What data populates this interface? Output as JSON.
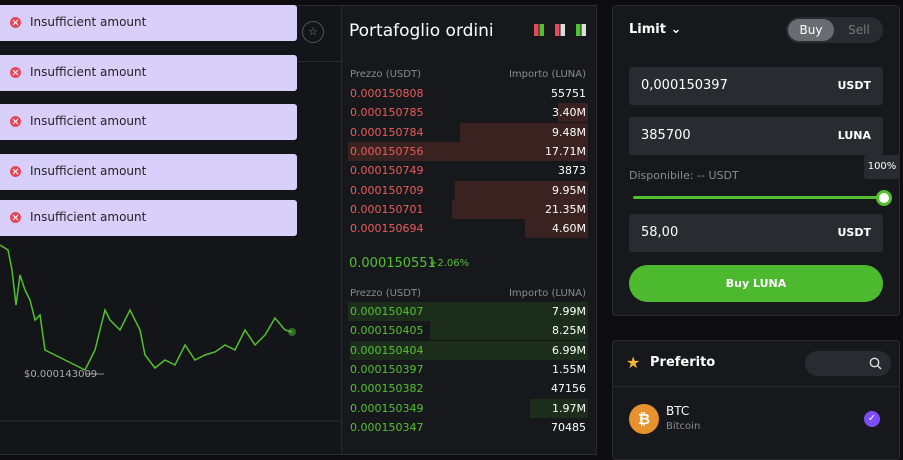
{
  "toasts": [
    "Insufficient amount",
    "Insufficient amount",
    "Insufficient amount",
    "Insufficient amount",
    "Insufficient amount"
  ],
  "chart": {
    "price_label": "$0.000143009"
  },
  "order_book": {
    "title": "Portafoglio ordini",
    "ask_header": {
      "price": "Prezzo (USDT)",
      "amount": "Importo (LUNA)"
    },
    "asks": [
      {
        "price": "0.000150808",
        "amount": "55751"
      },
      {
        "price": "0.000150785",
        "amount": "3.40M"
      },
      {
        "price": "0.000150784",
        "amount": "9.48M"
      },
      {
        "price": "0.000150756",
        "amount": "17.71M"
      },
      {
        "price": "0.000150749",
        "amount": "3873"
      },
      {
        "price": "0.000150709",
        "amount": "9.95M"
      },
      {
        "price": "0.000150701",
        "amount": "21.35M"
      },
      {
        "price": "0.000150694",
        "amount": "4.60M"
      }
    ],
    "mid": {
      "price": "0.000150551",
      "change": "+2.06%"
    },
    "bid_header": {
      "price": "Prezzo (USDT)",
      "amount": "Importo (LUNA)"
    },
    "bids": [
      {
        "price": "0.000150407",
        "amount": "7.99M"
      },
      {
        "price": "0.000150405",
        "amount": "8.25M"
      },
      {
        "price": "0.000150404",
        "amount": "6.99M"
      },
      {
        "price": "0.000150397",
        "amount": "1.55M"
      },
      {
        "price": "0.000150382",
        "amount": "47156"
      },
      {
        "price": "0.000150349",
        "amount": "1.97M"
      },
      {
        "price": "0.000150347",
        "amount": "70485"
      }
    ]
  },
  "order_form": {
    "type": "Limit",
    "tabs": [
      "Buy",
      "Sell"
    ],
    "price": "0,000150397",
    "price_unit": "USDT",
    "amount": "385700",
    "amount_unit": "LUNA",
    "slider_label": "100%",
    "available": "Disponibile: -- USDT",
    "total": "58,00",
    "total_unit": "USDT",
    "submit": "Buy LUNA"
  },
  "favorites": {
    "title": "Preferito",
    "items": [
      {
        "symbol": "BTC",
        "name": "Bitcoin"
      }
    ]
  }
}
